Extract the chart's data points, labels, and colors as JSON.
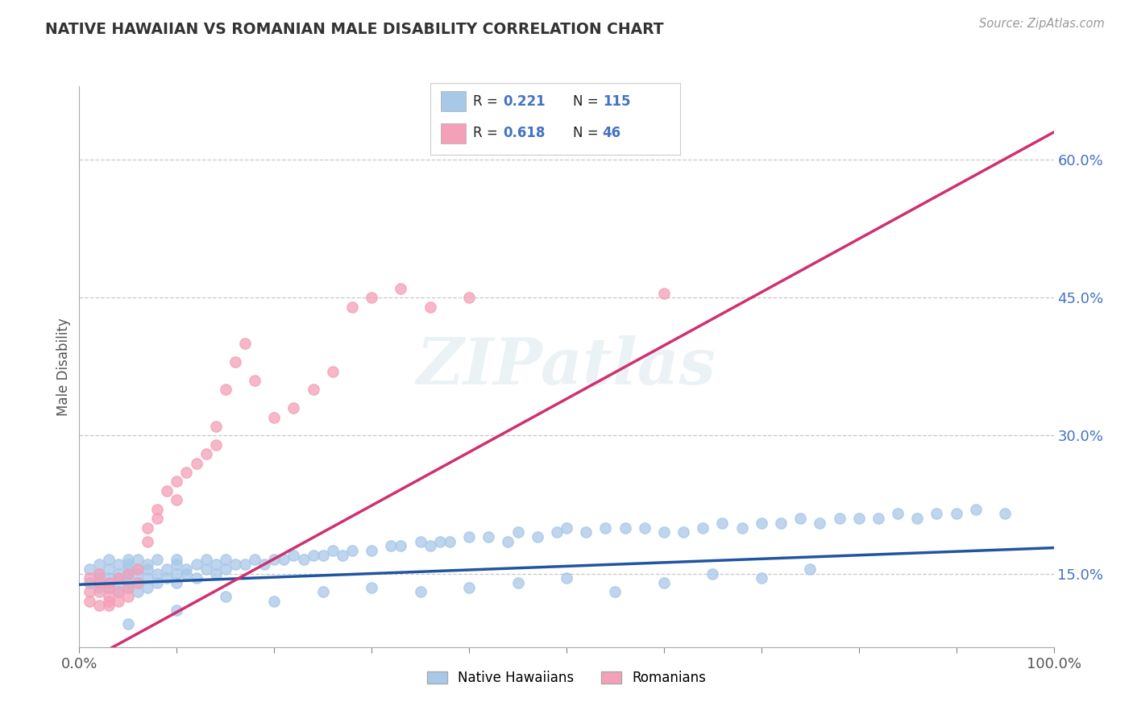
{
  "title": "NATIVE HAWAIIAN VS ROMANIAN MALE DISABILITY CORRELATION CHART",
  "source_text": "Source: ZipAtlas.com",
  "ylabel": "Male Disability",
  "xlim": [
    0.0,
    1.0
  ],
  "ylim": [
    0.07,
    0.68
  ],
  "yticks": [
    0.15,
    0.3,
    0.45,
    0.6
  ],
  "ytick_labels": [
    "15.0%",
    "30.0%",
    "45.0%",
    "60.0%"
  ],
  "xticks": [
    0.0,
    0.1,
    0.2,
    0.3,
    0.4,
    0.5,
    0.6,
    0.7,
    0.8,
    0.9,
    1.0
  ],
  "xtick_edge_labels": [
    "0.0%",
    "100.0%"
  ],
  "blue_R": 0.221,
  "blue_N": 115,
  "pink_R": 0.618,
  "pink_N": 46,
  "blue_scatter_color": "#a8c8e8",
  "pink_scatter_color": "#f4a0b8",
  "blue_line_color": "#2155a0",
  "pink_line_color": "#d03070",
  "legend_label_blue": "Native Hawaiians",
  "legend_label_pink": "Romanians",
  "watermark": "ZIPatlas",
  "background_color": "#ffffff",
  "grid_color": "#c8c8c8",
  "title_color": "#333333",
  "axis_label_color": "#555555",
  "right_tick_color": "#4472c4",
  "blue_line_intercept": 0.138,
  "blue_line_slope": 0.04,
  "pink_line_intercept": 0.05,
  "pink_line_slope": 0.58,
  "blue_scatter_x": [
    0.01,
    0.01,
    0.02,
    0.02,
    0.02,
    0.02,
    0.03,
    0.03,
    0.03,
    0.03,
    0.03,
    0.04,
    0.04,
    0.04,
    0.04,
    0.04,
    0.05,
    0.05,
    0.05,
    0.05,
    0.05,
    0.05,
    0.05,
    0.06,
    0.06,
    0.06,
    0.06,
    0.06,
    0.07,
    0.07,
    0.07,
    0.07,
    0.08,
    0.08,
    0.08,
    0.09,
    0.09,
    0.1,
    0.1,
    0.1,
    0.1,
    0.11,
    0.11,
    0.12,
    0.12,
    0.13,
    0.13,
    0.14,
    0.14,
    0.15,
    0.15,
    0.16,
    0.17,
    0.18,
    0.19,
    0.2,
    0.21,
    0.22,
    0.23,
    0.24,
    0.25,
    0.26,
    0.27,
    0.28,
    0.3,
    0.32,
    0.33,
    0.35,
    0.36,
    0.37,
    0.38,
    0.4,
    0.42,
    0.44,
    0.45,
    0.47,
    0.49,
    0.5,
    0.52,
    0.54,
    0.56,
    0.58,
    0.6,
    0.62,
    0.64,
    0.66,
    0.68,
    0.7,
    0.72,
    0.74,
    0.76,
    0.78,
    0.8,
    0.82,
    0.84,
    0.86,
    0.88,
    0.9,
    0.92,
    0.95,
    0.05,
    0.1,
    0.15,
    0.2,
    0.25,
    0.3,
    0.35,
    0.4,
    0.45,
    0.5,
    0.55,
    0.6,
    0.65,
    0.7,
    0.75
  ],
  "blue_scatter_y": [
    0.14,
    0.155,
    0.145,
    0.135,
    0.15,
    0.16,
    0.14,
    0.155,
    0.145,
    0.135,
    0.165,
    0.15,
    0.14,
    0.16,
    0.13,
    0.145,
    0.155,
    0.14,
    0.165,
    0.15,
    0.135,
    0.16,
    0.145,
    0.155,
    0.14,
    0.165,
    0.15,
    0.13,
    0.16,
    0.145,
    0.155,
    0.135,
    0.15,
    0.165,
    0.14,
    0.155,
    0.145,
    0.15,
    0.16,
    0.14,
    0.165,
    0.15,
    0.155,
    0.16,
    0.145,
    0.155,
    0.165,
    0.15,
    0.16,
    0.155,
    0.165,
    0.16,
    0.16,
    0.165,
    0.16,
    0.165,
    0.165,
    0.17,
    0.165,
    0.17,
    0.17,
    0.175,
    0.17,
    0.175,
    0.175,
    0.18,
    0.18,
    0.185,
    0.18,
    0.185,
    0.185,
    0.19,
    0.19,
    0.185,
    0.195,
    0.19,
    0.195,
    0.2,
    0.195,
    0.2,
    0.2,
    0.2,
    0.195,
    0.195,
    0.2,
    0.205,
    0.2,
    0.205,
    0.205,
    0.21,
    0.205,
    0.21,
    0.21,
    0.21,
    0.215,
    0.21,
    0.215,
    0.215,
    0.22,
    0.215,
    0.095,
    0.11,
    0.125,
    0.12,
    0.13,
    0.135,
    0.13,
    0.135,
    0.14,
    0.145,
    0.13,
    0.14,
    0.15,
    0.145,
    0.155
  ],
  "pink_scatter_x": [
    0.01,
    0.01,
    0.01,
    0.02,
    0.02,
    0.02,
    0.02,
    0.03,
    0.03,
    0.03,
    0.03,
    0.03,
    0.04,
    0.04,
    0.04,
    0.05,
    0.05,
    0.05,
    0.06,
    0.06,
    0.07,
    0.07,
    0.08,
    0.08,
    0.09,
    0.1,
    0.1,
    0.11,
    0.12,
    0.13,
    0.14,
    0.14,
    0.15,
    0.16,
    0.17,
    0.18,
    0.2,
    0.22,
    0.24,
    0.26,
    0.28,
    0.3,
    0.33,
    0.36,
    0.4,
    0.6
  ],
  "pink_scatter_y": [
    0.13,
    0.145,
    0.12,
    0.14,
    0.13,
    0.115,
    0.15,
    0.135,
    0.12,
    0.14,
    0.125,
    0.115,
    0.145,
    0.13,
    0.12,
    0.15,
    0.135,
    0.125,
    0.155,
    0.14,
    0.2,
    0.185,
    0.21,
    0.22,
    0.24,
    0.25,
    0.23,
    0.26,
    0.27,
    0.28,
    0.29,
    0.31,
    0.35,
    0.38,
    0.4,
    0.36,
    0.32,
    0.33,
    0.35,
    0.37,
    0.44,
    0.45,
    0.46,
    0.44,
    0.45,
    0.455
  ]
}
